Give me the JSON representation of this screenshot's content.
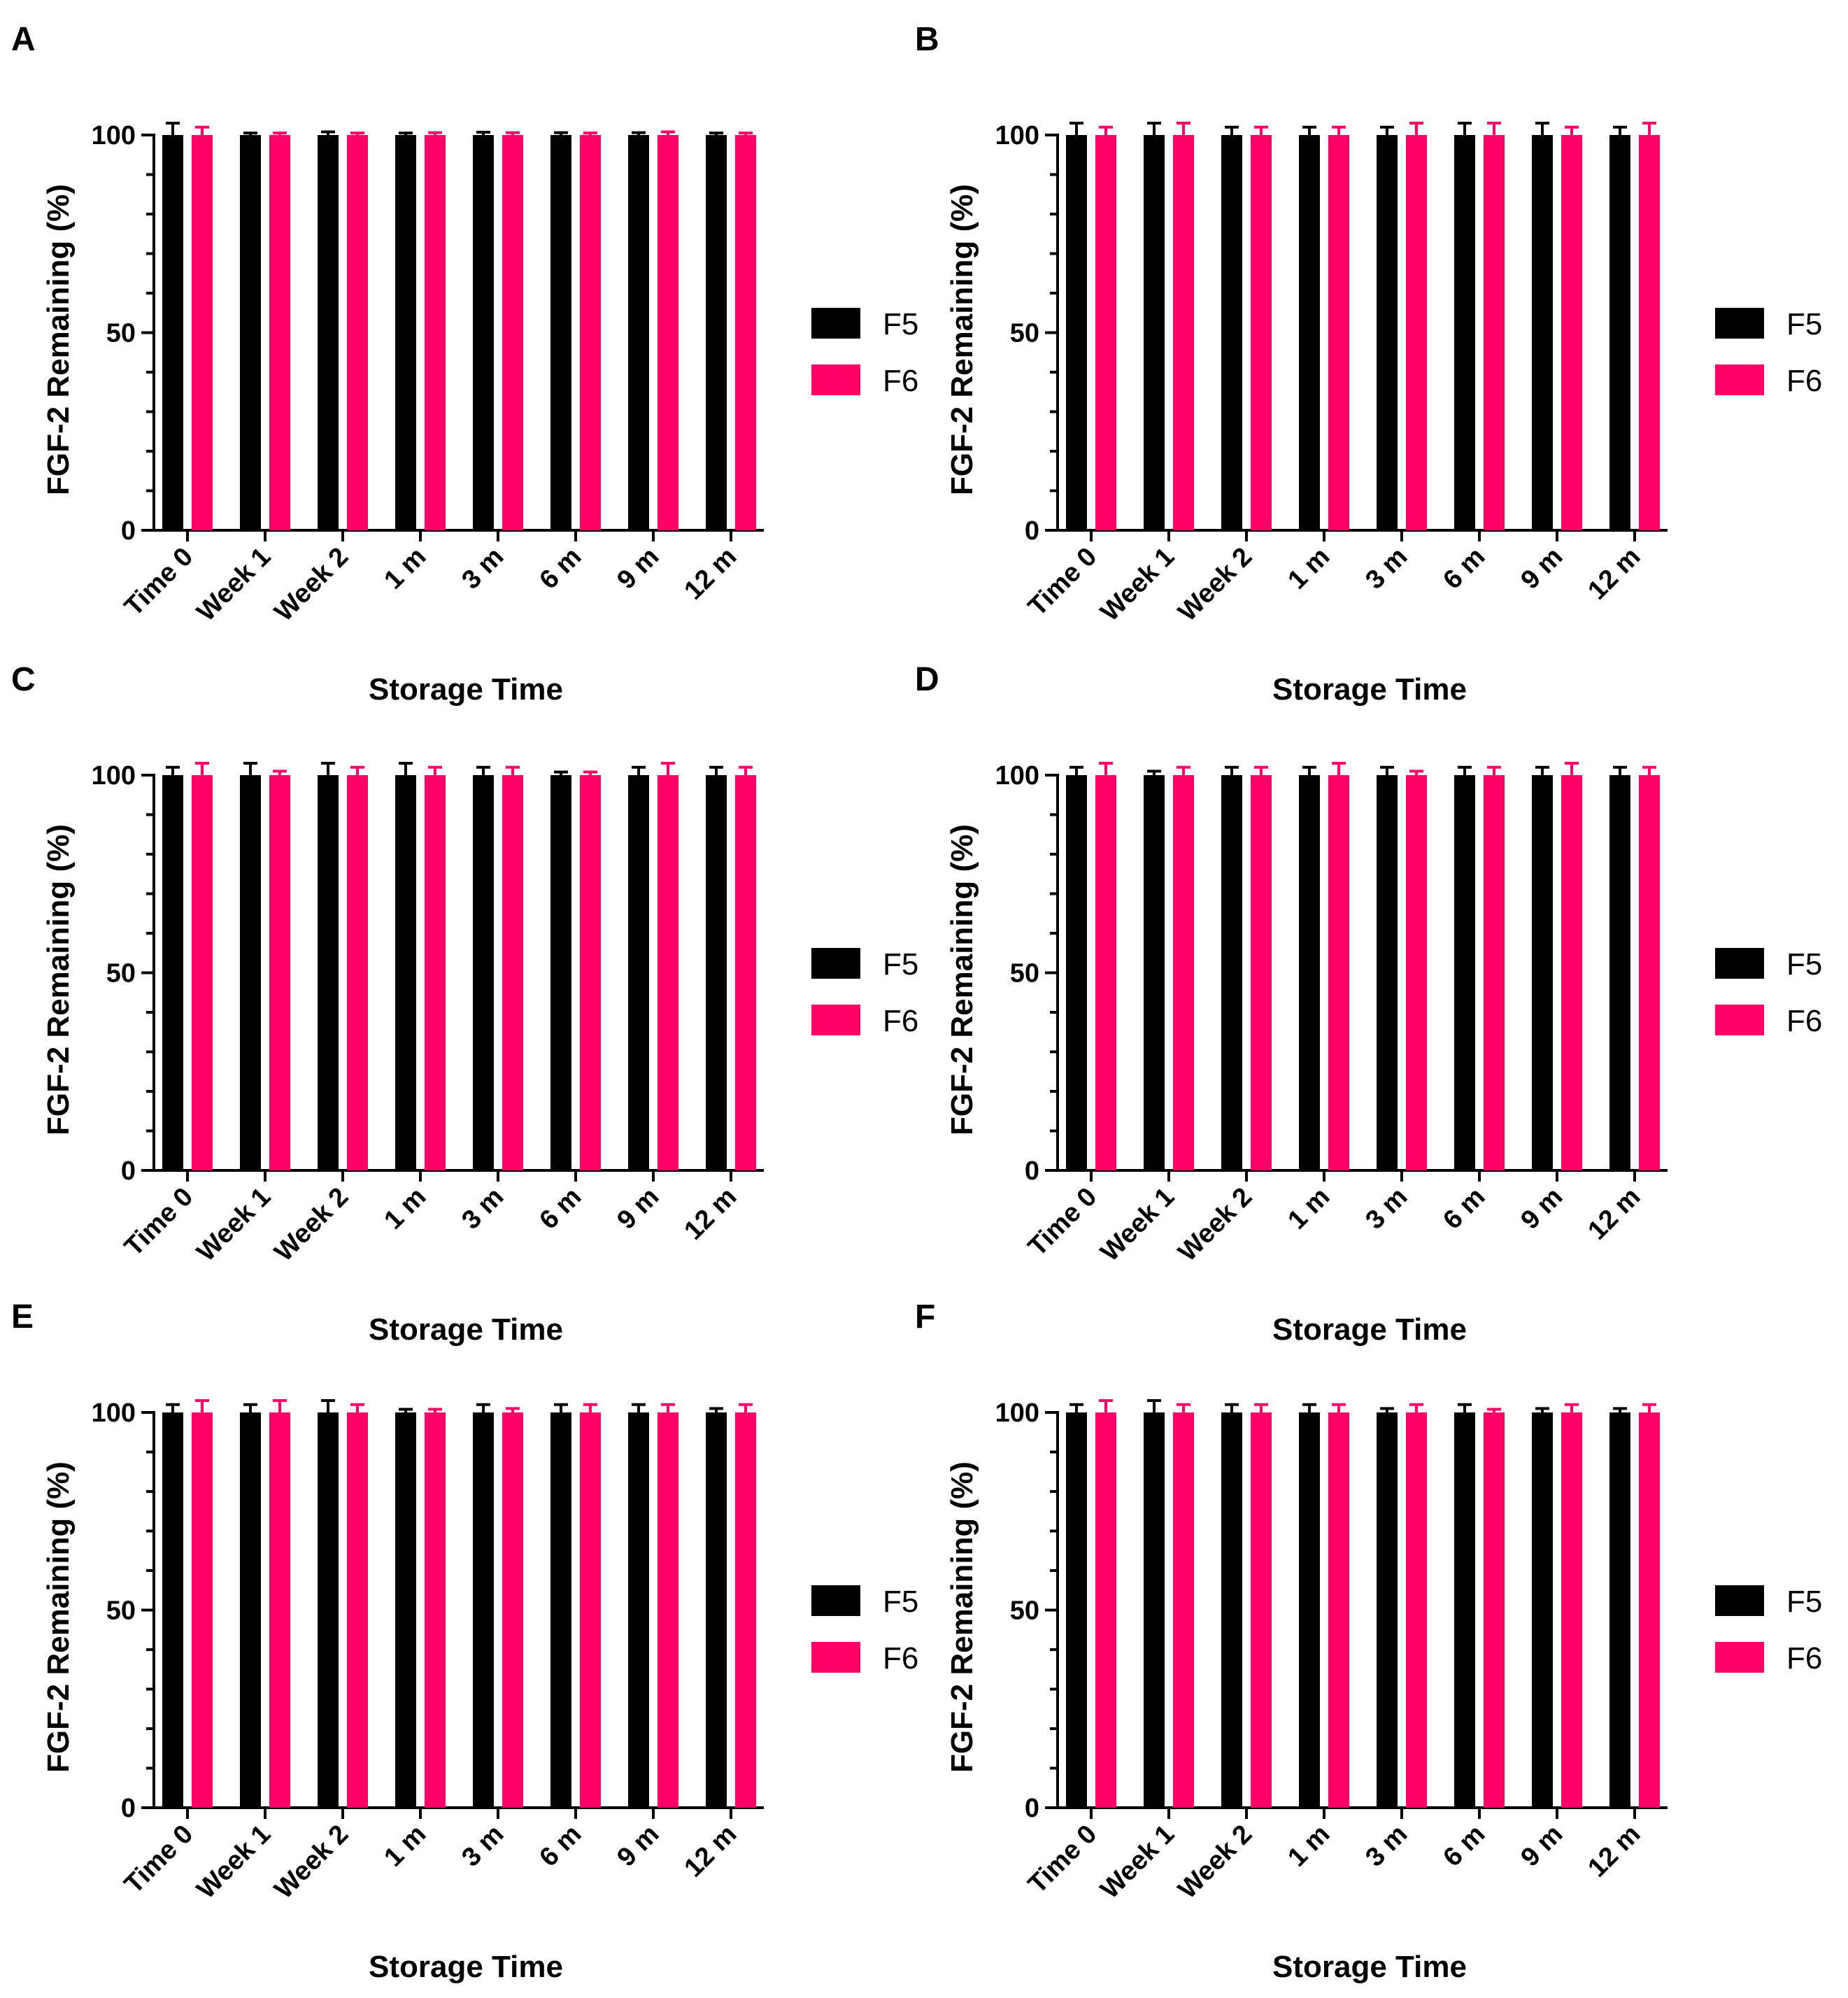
{
  "figure": {
    "colors": {
      "F5": "#000000",
      "F6": "#ff0066"
    }
  },
  "chart_data": [
    {
      "panel": "A",
      "type": "bar",
      "xlabel": "Storage Time",
      "ylabel": "FGF-2 Remaining (%)",
      "ylim": [
        0,
        100
      ],
      "yticks": [
        "0",
        "50",
        "100"
      ],
      "legend_position": "right",
      "categories": [
        "Time 0",
        "Week 1",
        "Week 2",
        "1 m",
        "3 m",
        "6 m",
        "9 m",
        "12 m"
      ],
      "series": [
        {
          "name": "F5",
          "values": [
            100,
            100,
            100,
            100,
            100,
            100,
            100,
            100
          ],
          "errors": [
            3,
            0.5,
            0.8,
            0.5,
            0.7,
            0.6,
            0.6,
            0.5
          ]
        },
        {
          "name": "F6",
          "values": [
            100,
            100,
            100,
            100,
            100,
            100,
            100,
            100
          ],
          "errors": [
            2,
            0.5,
            0.5,
            0.6,
            0.6,
            0.5,
            0.8,
            0.5
          ]
        }
      ]
    },
    {
      "panel": "B",
      "type": "bar",
      "xlabel": "Storage Time",
      "ylabel": "FGF-2 Remaining (%)",
      "ylim": [
        0,
        100
      ],
      "yticks": [
        "0",
        "50",
        "100"
      ],
      "legend_position": "right",
      "categories": [
        "Time 0",
        "Week 1",
        "Week 2",
        "1 m",
        "3 m",
        "6 m",
        "9 m",
        "12 m"
      ],
      "series": [
        {
          "name": "F5",
          "values": [
            100,
            100,
            100,
            100,
            100,
            100,
            100,
            100
          ],
          "errors": [
            3,
            3,
            2,
            2,
            2,
            3,
            3,
            2
          ]
        },
        {
          "name": "F6",
          "values": [
            100,
            100,
            100,
            100,
            100,
            100,
            100,
            100
          ],
          "errors": [
            2,
            3,
            2,
            2,
            3,
            3,
            2,
            3
          ]
        }
      ]
    },
    {
      "panel": "C",
      "type": "bar",
      "xlabel": "Storage Time",
      "ylabel": "FGF-2 Remaining (%)",
      "ylim": [
        0,
        100
      ],
      "yticks": [
        "0",
        "50",
        "100"
      ],
      "legend_position": "right",
      "categories": [
        "Time 0",
        "Week 1",
        "Week 2",
        "1 m",
        "3 m",
        "6 m",
        "9 m",
        "12 m"
      ],
      "series": [
        {
          "name": "F5",
          "values": [
            100,
            100,
            100,
            100,
            100,
            100,
            100,
            100
          ],
          "errors": [
            2,
            3,
            3,
            3,
            2,
            0.8,
            2,
            2
          ]
        },
        {
          "name": "F6",
          "values": [
            100,
            100,
            100,
            100,
            100,
            100,
            100,
            100
          ],
          "errors": [
            3,
            1,
            2,
            2,
            2,
            0.8,
            3,
            2
          ]
        }
      ]
    },
    {
      "panel": "D",
      "type": "bar",
      "xlabel": "Storage Time",
      "ylabel": "FGF-2 Remaining (%)",
      "ylim": [
        0,
        100
      ],
      "yticks": [
        "0",
        "50",
        "100"
      ],
      "legend_position": "right",
      "categories": [
        "Time 0",
        "Week 1",
        "Week 2",
        "1 m",
        "3 m",
        "6 m",
        "9 m",
        "12 m"
      ],
      "series": [
        {
          "name": "F5",
          "values": [
            100,
            100,
            100,
            100,
            100,
            100,
            100,
            100
          ],
          "errors": [
            2,
            1,
            2,
            2,
            2,
            2,
            2,
            2
          ]
        },
        {
          "name": "F6",
          "values": [
            100,
            100,
            100,
            100,
            100,
            100,
            100,
            100
          ],
          "errors": [
            3,
            2,
            2,
            3,
            1,
            2,
            3,
            2
          ]
        }
      ]
    },
    {
      "panel": "E",
      "type": "bar",
      "xlabel": "Storage Time",
      "ylabel": "FGF-2 Remaining (%)",
      "ylim": [
        0,
        100
      ],
      "yticks": [
        "0",
        "50",
        "100"
      ],
      "legend_position": "right",
      "categories": [
        "Time 0",
        "Week 1",
        "Week 2",
        "1 m",
        "3 m",
        "6 m",
        "9 m",
        "12 m"
      ],
      "series": [
        {
          "name": "F5",
          "values": [
            100,
            100,
            100,
            100,
            100,
            100,
            100,
            100
          ],
          "errors": [
            2,
            2,
            3,
            0.8,
            2,
            2,
            2,
            1
          ]
        },
        {
          "name": "F6",
          "values": [
            100,
            100,
            100,
            100,
            100,
            100,
            100,
            100
          ],
          "errors": [
            3,
            3,
            2,
            0.8,
            1,
            2,
            2,
            2
          ]
        }
      ]
    },
    {
      "panel": "F",
      "type": "bar",
      "xlabel": "Storage Time",
      "ylabel": "FGF-2 Remaining (%)",
      "ylim": [
        0,
        100
      ],
      "yticks": [
        "0",
        "50",
        "100"
      ],
      "legend_position": "right",
      "categories": [
        "Time 0",
        "Week 1",
        "Week 2",
        "1 m",
        "3 m",
        "6 m",
        "9 m",
        "12 m"
      ],
      "series": [
        {
          "name": "F5",
          "values": [
            100,
            100,
            100,
            100,
            100,
            100,
            100,
            100
          ],
          "errors": [
            2,
            3,
            2,
            2,
            1,
            2,
            1,
            1
          ]
        },
        {
          "name": "F6",
          "values": [
            100,
            100,
            100,
            100,
            100,
            100,
            100,
            100
          ],
          "errors": [
            3,
            2,
            2,
            2,
            2,
            0.8,
            2,
            2
          ]
        }
      ]
    }
  ]
}
